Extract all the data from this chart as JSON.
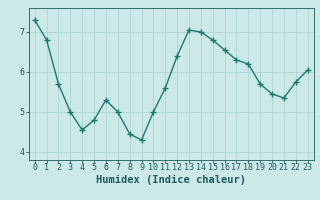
{
  "x": [
    0,
    1,
    2,
    3,
    4,
    5,
    6,
    7,
    8,
    9,
    10,
    11,
    12,
    13,
    14,
    15,
    16,
    17,
    18,
    19,
    20,
    21,
    22,
    23
  ],
  "y": [
    7.3,
    6.8,
    5.7,
    5.0,
    4.55,
    4.8,
    5.3,
    5.0,
    4.45,
    4.3,
    5.0,
    5.6,
    6.4,
    7.05,
    7.0,
    6.8,
    6.55,
    6.3,
    6.2,
    5.7,
    5.45,
    5.35,
    5.75,
    6.05
  ],
  "line_color": "#1a7a6e",
  "marker": "+",
  "marker_size": 4,
  "marker_lw": 1.0,
  "line_width": 1.0,
  "bg_color": "#cce8e8",
  "grid_color": "#aad4d4",
  "xlabel": "Humidex (Indice chaleur)",
  "xlabel_color": "#1a5c5c",
  "xlabel_fontsize": 7.5,
  "tick_color": "#1a5c5c",
  "tick_fontsize": 6.0,
  "ylim": [
    3.8,
    7.6
  ],
  "xlim": [
    -0.5,
    23.5
  ],
  "yticks": [
    4,
    5,
    6,
    7
  ],
  "xticks": [
    0,
    1,
    2,
    3,
    4,
    5,
    6,
    7,
    8,
    9,
    10,
    11,
    12,
    13,
    14,
    15,
    16,
    17,
    18,
    19,
    20,
    21,
    22,
    23
  ]
}
